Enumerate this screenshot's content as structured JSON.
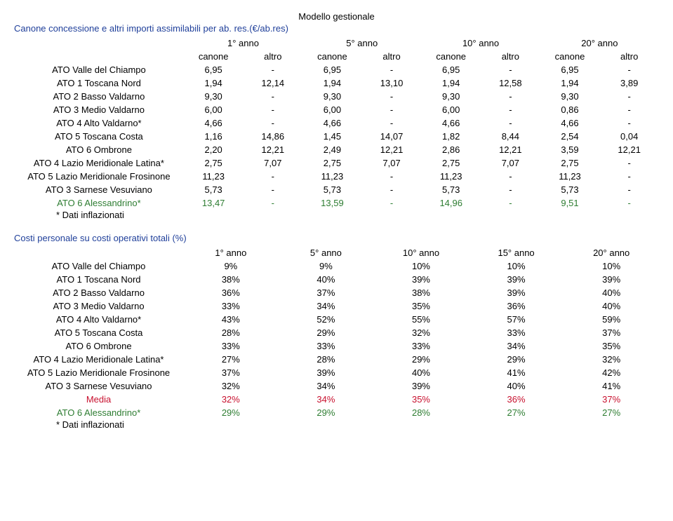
{
  "header": {
    "model_label": "Modello gestionale"
  },
  "table1": {
    "title": "Canone concessione e altri importi assimilabili per ab. res.(€/ab.res)",
    "title_color": "#1f3f9a",
    "year_labels": [
      "1° anno",
      "5° anno",
      "10° anno",
      "20° anno"
    ],
    "sub_labels": [
      "canone",
      "altro"
    ],
    "rows": [
      {
        "label": "ATO Valle del Chiampo",
        "cells": [
          "6,95",
          "-",
          "6,95",
          "-",
          "6,95",
          "-",
          "6,95",
          "-"
        ],
        "color": "#000000"
      },
      {
        "label": "ATO 1 Toscana Nord",
        "cells": [
          "1,94",
          "12,14",
          "1,94",
          "13,10",
          "1,94",
          "12,58",
          "1,94",
          "3,89"
        ],
        "color": "#000000"
      },
      {
        "label": "ATO 2 Basso Valdarno",
        "cells": [
          "9,30",
          "-",
          "9,30",
          "-",
          "9,30",
          "-",
          "9,30",
          "-"
        ],
        "color": "#000000"
      },
      {
        "label": "ATO 3 Medio Valdarno",
        "cells": [
          "6,00",
          "-",
          "6,00",
          "-",
          "6,00",
          "-",
          "0,86",
          "-"
        ],
        "color": "#000000"
      },
      {
        "label": "ATO 4 Alto Valdarno*",
        "cells": [
          "4,66",
          "-",
          "4,66",
          "-",
          "4,66",
          "-",
          "4,66",
          "-"
        ],
        "color": "#000000"
      },
      {
        "label": "ATO 5 Toscana Costa",
        "cells": [
          "1,16",
          "14,86",
          "1,45",
          "14,07",
          "1,82",
          "8,44",
          "2,54",
          "0,04"
        ],
        "color": "#000000"
      },
      {
        "label": "ATO 6 Ombrone",
        "cells": [
          "2,20",
          "12,21",
          "2,49",
          "12,21",
          "2,86",
          "12,21",
          "3,59",
          "12,21"
        ],
        "color": "#000000"
      },
      {
        "label": "ATO 4 Lazio Meridionale Latina*",
        "cells": [
          "2,75",
          "7,07",
          "2,75",
          "7,07",
          "2,75",
          "7,07",
          "2,75",
          "-"
        ],
        "color": "#000000"
      },
      {
        "label": "ATO 5 Lazio Meridionale Frosinone",
        "cells": [
          "11,23",
          "-",
          "11,23",
          "-",
          "11,23",
          "-",
          "11,23",
          "-"
        ],
        "color": "#000000"
      },
      {
        "label": "ATO 3 Sarnese Vesuviano",
        "cells": [
          "5,73",
          "-",
          "5,73",
          "-",
          "5,73",
          "-",
          "5,73",
          "-"
        ],
        "color": "#000000"
      },
      {
        "label": "ATO 6 Alessandrino*",
        "cells": [
          "13,47",
          "-",
          "13,59",
          "-",
          "14,96",
          "-",
          "9,51",
          "-"
        ],
        "color": "#2e7d32"
      }
    ],
    "footnote": "* Dati inflazionati"
  },
  "table2": {
    "title": "Costi personale su costi operativi totali (%)",
    "title_color": "#1f3f9a",
    "year_labels": [
      "1° anno",
      "5° anno",
      "10° anno",
      "15° anno",
      "20° anno"
    ],
    "rows": [
      {
        "label": "ATO Valle del Chiampo",
        "cells": [
          "9%",
          "9%",
          "10%",
          "10%",
          "10%"
        ],
        "color": "#000000"
      },
      {
        "label": "ATO 1 Toscana Nord",
        "cells": [
          "38%",
          "40%",
          "39%",
          "39%",
          "39%"
        ],
        "color": "#000000"
      },
      {
        "label": "ATO 2 Basso Valdarno",
        "cells": [
          "36%",
          "37%",
          "38%",
          "39%",
          "40%"
        ],
        "color": "#000000"
      },
      {
        "label": "ATO 3 Medio Valdarno",
        "cells": [
          "33%",
          "34%",
          "35%",
          "36%",
          "40%"
        ],
        "color": "#000000"
      },
      {
        "label": "ATO 4 Alto Valdarno*",
        "cells": [
          "43%",
          "52%",
          "55%",
          "57%",
          "59%"
        ],
        "color": "#000000"
      },
      {
        "label": "ATO 5 Toscana Costa",
        "cells": [
          "28%",
          "29%",
          "32%",
          "33%",
          "37%"
        ],
        "color": "#000000"
      },
      {
        "label": "ATO 6 Ombrone",
        "cells": [
          "33%",
          "33%",
          "33%",
          "34%",
          "35%"
        ],
        "color": "#000000"
      },
      {
        "label": "ATO 4 Lazio Meridionale Latina*",
        "cells": [
          "27%",
          "28%",
          "29%",
          "29%",
          "32%"
        ],
        "color": "#000000"
      },
      {
        "label": "ATO 5 Lazio Meridionale Frosinone",
        "cells": [
          "37%",
          "39%",
          "40%",
          "41%",
          "42%"
        ],
        "color": "#000000"
      },
      {
        "label": "ATO 3 Sarnese Vesuviano",
        "cells": [
          "32%",
          "34%",
          "39%",
          "40%",
          "41%"
        ],
        "color": "#000000"
      },
      {
        "label": "Media",
        "cells": [
          "32%",
          "34%",
          "35%",
          "36%",
          "37%"
        ],
        "color": "#c8102e"
      },
      {
        "label": "ATO 6 Alessandrino*",
        "cells": [
          "29%",
          "29%",
          "28%",
          "27%",
          "27%"
        ],
        "color": "#2e7d32"
      }
    ],
    "footnote": "* Dati inflazionati"
  }
}
